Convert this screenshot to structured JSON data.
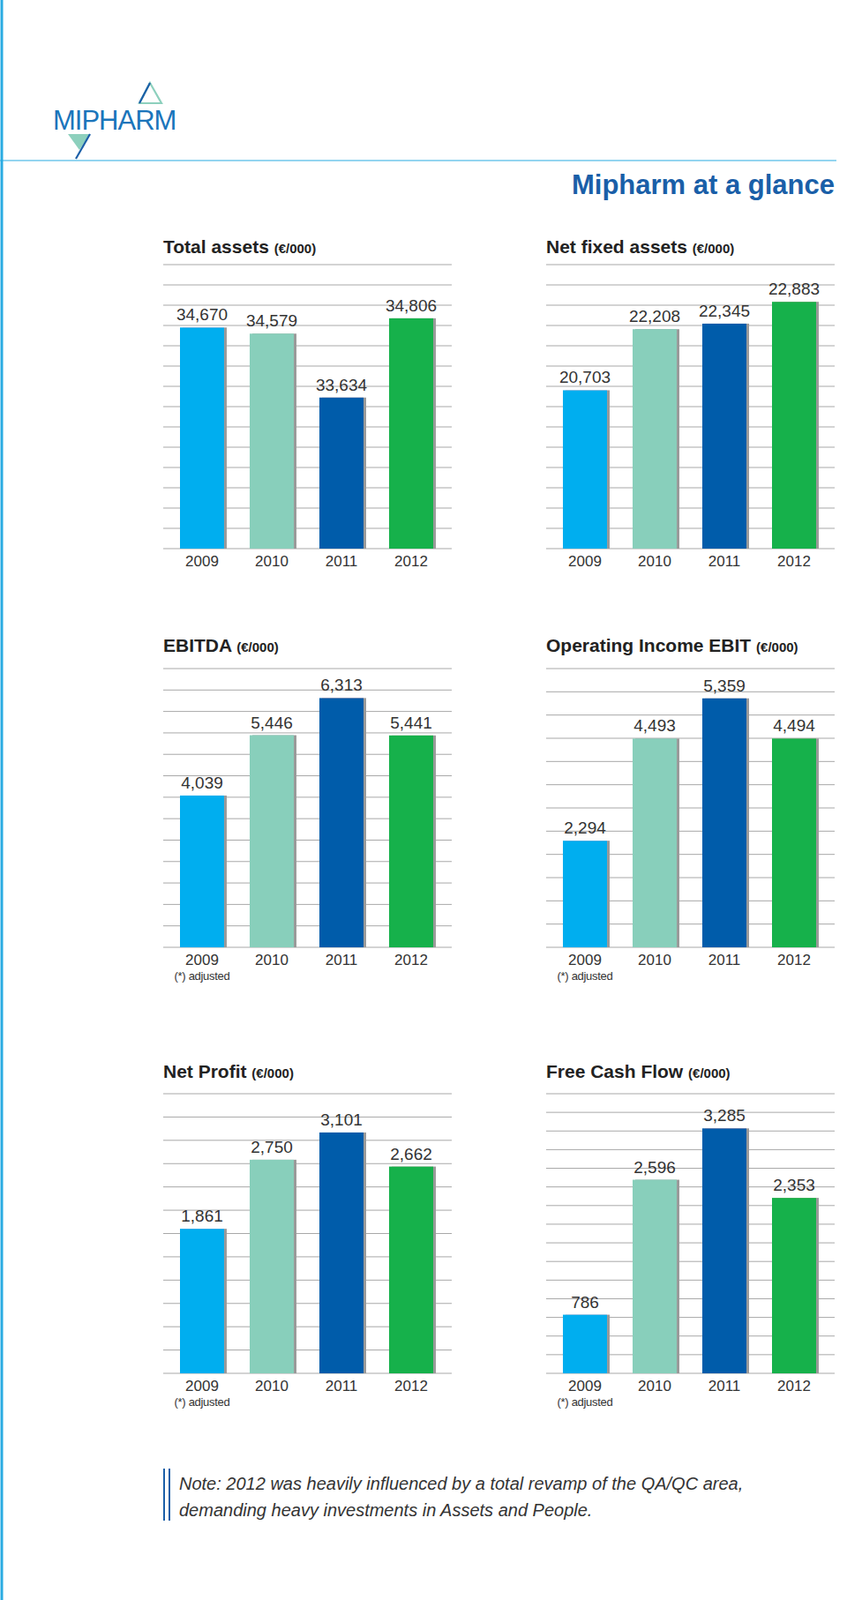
{
  "header": {
    "logo": "MIPHARM",
    "title": "Mipharm at a glance"
  },
  "chart_data": [
    {
      "type": "bar",
      "title": "Total assets",
      "units": "(€/000)",
      "categories": [
        "2009",
        "2010",
        "2011",
        "2012"
      ],
      "values": [
        34670,
        34579,
        33634,
        34806
      ],
      "value_labels": [
        "34,670",
        "34,579",
        "33,634",
        "34,806"
      ],
      "colors": [
        "#00aeef",
        "#88cfbb",
        "#005baa",
        "#16b14b"
      ],
      "ylim": [
        31400,
        35600
      ],
      "yticks": [
        31400,
        31700,
        32000,
        32300,
        32600,
        32900,
        33200,
        33500,
        33800,
        34100,
        34400,
        34700,
        35000,
        35300,
        35600
      ],
      "grid": true,
      "tick_labels": "x",
      "data_labels": true
    },
    {
      "type": "bar",
      "title": "Net fixed assets",
      "units": "(€/000)",
      "categories": [
        "2009",
        "2010",
        "2011",
        "2012"
      ],
      "values": [
        20703,
        22208,
        22345,
        22883
      ],
      "value_labels": [
        "20,703",
        "22,208",
        "22,345",
        "22,883"
      ],
      "colors": [
        "#00aeef",
        "#88cfbb",
        "#005baa",
        "#16b14b"
      ],
      "ylim": [
        16800,
        23800
      ],
      "yticks": [
        16800,
        17300,
        17800,
        18300,
        18800,
        19300,
        19800,
        20300,
        20800,
        21300,
        21800,
        22300,
        22800,
        23300,
        23800
      ],
      "grid": true,
      "tick_labels": "x",
      "data_labels": true
    },
    {
      "type": "bar",
      "title": "EBITDA",
      "units": "(€/000)",
      "categories": [
        "2009",
        "2010",
        "2011",
        "2012"
      ],
      "values": [
        4039,
        5446,
        6313,
        5441
      ],
      "value_labels": [
        "4,039",
        "5,446",
        "6,313",
        "5,441"
      ],
      "colors": [
        "#00aeef",
        "#88cfbb",
        "#005baa",
        "#16b14b"
      ],
      "ylim": [
        500,
        7000
      ],
      "yticks": [
        500,
        1000,
        1500,
        2000,
        2500,
        3000,
        3500,
        4000,
        4500,
        5000,
        5500,
        6000,
        6500,
        7000
      ],
      "grid": true,
      "tick_labels": "x",
      "data_labels": true,
      "footnote": "(*) adjusted"
    },
    {
      "type": "bar",
      "title": "Operating Income EBIT",
      "units": "(€/000)",
      "categories": [
        "2009",
        "2010",
        "2011",
        "2012"
      ],
      "values": [
        2294,
        4493,
        5359,
        4494
      ],
      "value_labels": [
        "2,294",
        "4,493",
        "5,359",
        "4,494"
      ],
      "colors": [
        "#00aeef",
        "#88cfbb",
        "#005baa",
        "#16b14b"
      ],
      "ylim": [
        0,
        6000
      ],
      "yticks": [
        0,
        500,
        1000,
        1500,
        2000,
        2500,
        3000,
        3500,
        4000,
        4500,
        5000,
        5500,
        6000
      ],
      "grid": true,
      "tick_labels": "x",
      "data_labels": true,
      "footnote": "(*) adjusted"
    },
    {
      "type": "bar",
      "title": "Net Profit",
      "units": "(€/000)",
      "categories": [
        "2009",
        "2010",
        "2011",
        "2012"
      ],
      "values": [
        1861,
        2750,
        3101,
        2662
      ],
      "value_labels": [
        "1,861",
        "2,750",
        "3,101",
        "2,662"
      ],
      "colors": [
        "#00aeef",
        "#88cfbb",
        "#005baa",
        "#16b14b"
      ],
      "ylim": [
        0,
        3600
      ],
      "yticks": [
        0,
        300,
        600,
        900,
        1200,
        1500,
        1800,
        2100,
        2400,
        2700,
        3000,
        3300,
        3600
      ],
      "grid": true,
      "tick_labels": "x",
      "data_labels": true,
      "footnote": "(*) adjusted"
    },
    {
      "type": "bar",
      "title": "Free Cash Flow",
      "units": "(€/000)",
      "categories": [
        "2009",
        "2010",
        "2011",
        "2012"
      ],
      "values": [
        786,
        2596,
        3285,
        2353
      ],
      "value_labels": [
        "786",
        "2,596",
        "3,285",
        "2,353"
      ],
      "colors": [
        "#00aeef",
        "#88cfbb",
        "#005baa",
        "#16b14b"
      ],
      "ylim": [
        0,
        3750
      ],
      "yticks": [
        0,
        250,
        500,
        750,
        1000,
        1250,
        1500,
        1750,
        2000,
        2250,
        2500,
        2750,
        3000,
        3250,
        3500,
        3750
      ],
      "grid": true,
      "tick_labels": "x",
      "data_labels": true,
      "footnote": "(*) adjusted"
    }
  ],
  "note": [
    "Note: 2012 was heavily influenced by a total revamp of the QA/QC area,",
    "demanding heavy investments in Assets and People."
  ]
}
